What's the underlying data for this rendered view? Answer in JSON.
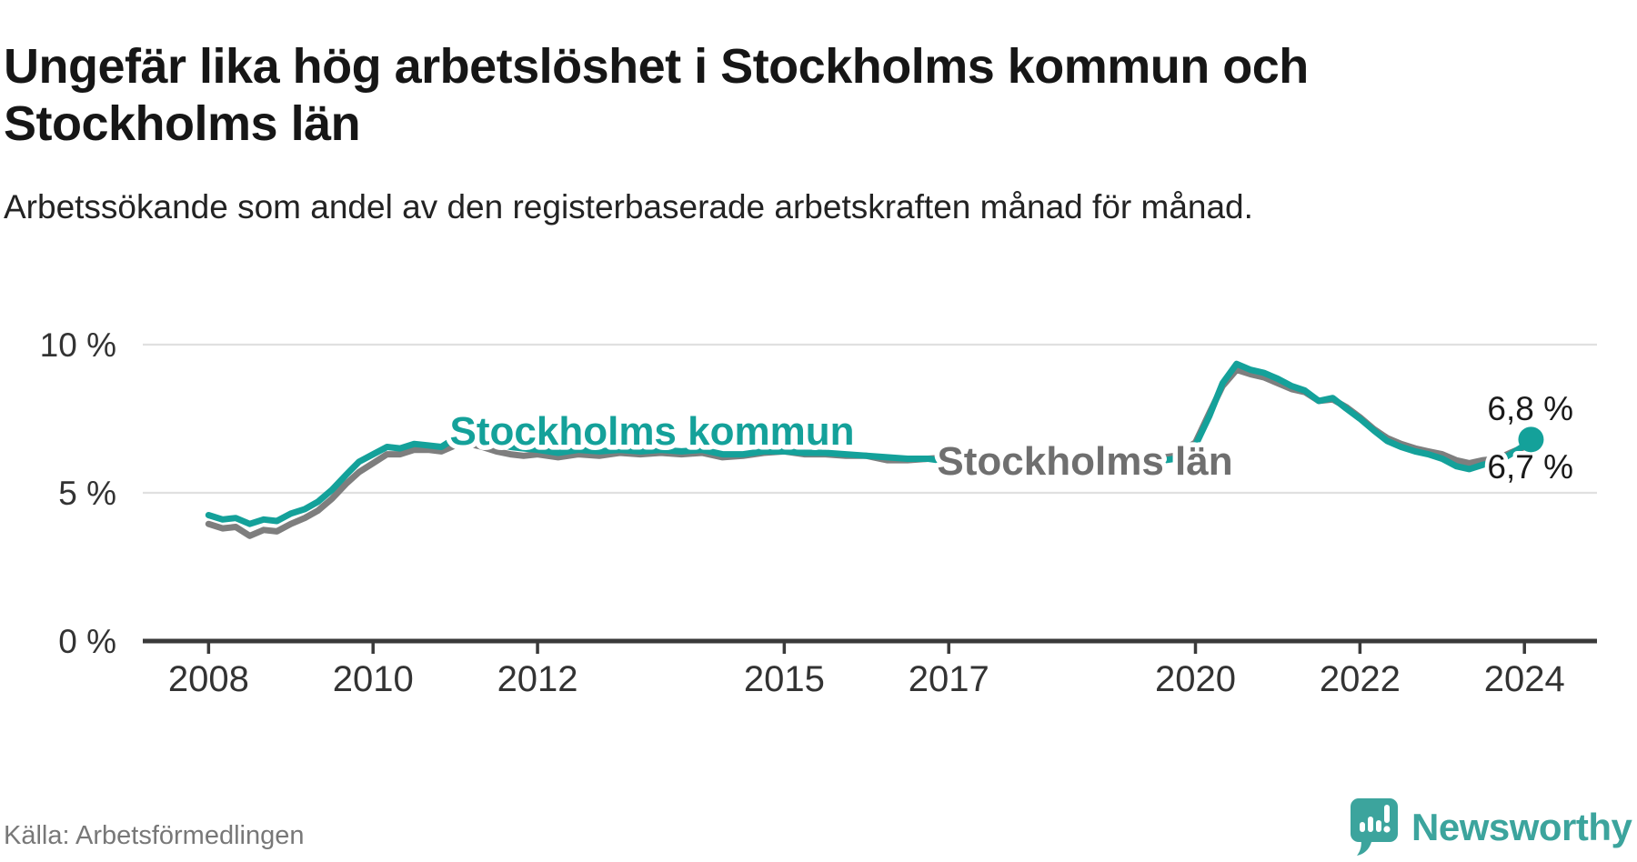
{
  "header": {
    "title": "Ungefär lika hög arbetslöshet i Stockholms kommun och Stockholms län",
    "subtitle": "Arbetssökande som andel av den registerbaserade arbetskraften månad för månad."
  },
  "footer": {
    "source": "Källa: Arbetsförmedlingen",
    "brand": "Newsworthy"
  },
  "colors": {
    "kommun_teal": "#14a19a",
    "lan_gray": "#7e7e7e",
    "kommun_label": "#14a19a",
    "lan_label": "#6f6f6f",
    "axis_text": "#333333",
    "gridline": "#e0e0e0",
    "axis_line": "#3a3a3a",
    "logo_teal": "#3ca49d"
  },
  "chart_data": {
    "type": "line",
    "title": "Ungefär lika hög arbetslöshet i Stockholms kommun och Stockholms län",
    "xlabel": "",
    "ylabel": "Arbetssökande som andel av den registerbaserade arbetskraften",
    "ylim": [
      0,
      10.8
    ],
    "x_range": [
      2008.0,
      2024.1
    ],
    "grid": "horizontal",
    "legend_position": "inline-labels",
    "x_ticks": [
      2008,
      2010,
      2012,
      2015,
      2017,
      2020,
      2022,
      2024
    ],
    "y_ticks": [
      {
        "value": 0,
        "label": "0 %"
      },
      {
        "value": 5,
        "label": "5 %"
      },
      {
        "value": 10,
        "label": "10 %"
      }
    ],
    "series": [
      {
        "name": "Stockholms kommun",
        "color": "#14a19a",
        "end_label": "6,8 %",
        "end_value": 6.8,
        "end_dot": true,
        "points": [
          [
            2008.0,
            4.25
          ],
          [
            2008.17,
            4.1
          ],
          [
            2008.33,
            4.15
          ],
          [
            2008.5,
            3.95
          ],
          [
            2008.67,
            4.1
          ],
          [
            2008.83,
            4.05
          ],
          [
            2009.0,
            4.3
          ],
          [
            2009.17,
            4.45
          ],
          [
            2009.33,
            4.7
          ],
          [
            2009.5,
            5.1
          ],
          [
            2009.67,
            5.6
          ],
          [
            2009.83,
            6.05
          ],
          [
            2010.0,
            6.3
          ],
          [
            2010.17,
            6.55
          ],
          [
            2010.33,
            6.5
          ],
          [
            2010.5,
            6.65
          ],
          [
            2010.67,
            6.6
          ],
          [
            2010.83,
            6.55
          ],
          [
            2011.0,
            6.85
          ],
          [
            2011.17,
            7.0
          ],
          [
            2011.33,
            6.9
          ],
          [
            2011.5,
            6.65
          ],
          [
            2011.67,
            6.55
          ],
          [
            2011.83,
            6.5
          ],
          [
            2012.0,
            6.45
          ],
          [
            2012.25,
            6.35
          ],
          [
            2012.5,
            6.45
          ],
          [
            2012.75,
            6.4
          ],
          [
            2013.0,
            6.45
          ],
          [
            2013.25,
            6.4
          ],
          [
            2013.5,
            6.45
          ],
          [
            2013.75,
            6.4
          ],
          [
            2014.0,
            6.45
          ],
          [
            2014.25,
            6.3
          ],
          [
            2014.5,
            6.3
          ],
          [
            2014.75,
            6.4
          ],
          [
            2015.0,
            6.4
          ],
          [
            2015.25,
            6.35
          ],
          [
            2015.5,
            6.35
          ],
          [
            2015.75,
            6.3
          ],
          [
            2016.0,
            6.25
          ],
          [
            2016.25,
            6.2
          ],
          [
            2016.5,
            6.15
          ],
          [
            2016.75,
            6.15
          ],
          [
            2017.0,
            6.05
          ],
          [
            2017.25,
            6.0
          ],
          [
            2017.5,
            5.95
          ],
          [
            2017.75,
            5.9
          ],
          [
            2018.0,
            5.9
          ],
          [
            2018.25,
            5.85
          ],
          [
            2018.5,
            5.85
          ],
          [
            2018.75,
            5.9
          ],
          [
            2019.0,
            5.95
          ],
          [
            2019.25,
            6.0
          ],
          [
            2019.5,
            6.05
          ],
          [
            2019.75,
            6.15
          ],
          [
            2020.0,
            6.6
          ],
          [
            2020.17,
            7.6
          ],
          [
            2020.33,
            8.7
          ],
          [
            2020.5,
            9.35
          ],
          [
            2020.67,
            9.15
          ],
          [
            2020.83,
            9.05
          ],
          [
            2021.0,
            8.85
          ],
          [
            2021.17,
            8.6
          ],
          [
            2021.33,
            8.45
          ],
          [
            2021.5,
            8.1
          ],
          [
            2021.67,
            8.2
          ],
          [
            2021.83,
            7.85
          ],
          [
            2022.0,
            7.5
          ],
          [
            2022.17,
            7.1
          ],
          [
            2022.33,
            6.75
          ],
          [
            2022.5,
            6.55
          ],
          [
            2022.67,
            6.4
          ],
          [
            2022.83,
            6.3
          ],
          [
            2023.0,
            6.15
          ],
          [
            2023.17,
            5.9
          ],
          [
            2023.33,
            5.8
          ],
          [
            2023.5,
            5.95
          ],
          [
            2023.67,
            6.05
          ],
          [
            2023.83,
            6.3
          ],
          [
            2024.0,
            6.6
          ],
          [
            2024.08,
            6.8
          ]
        ]
      },
      {
        "name": "Stockholms län",
        "color": "#7e7e7e",
        "end_label": "6,7 %",
        "end_value": 6.7,
        "end_dot": false,
        "points": [
          [
            2008.0,
            3.95
          ],
          [
            2008.17,
            3.8
          ],
          [
            2008.33,
            3.85
          ],
          [
            2008.5,
            3.55
          ],
          [
            2008.67,
            3.75
          ],
          [
            2008.83,
            3.7
          ],
          [
            2009.0,
            3.95
          ],
          [
            2009.17,
            4.15
          ],
          [
            2009.33,
            4.4
          ],
          [
            2009.5,
            4.8
          ],
          [
            2009.67,
            5.3
          ],
          [
            2009.83,
            5.7
          ],
          [
            2010.0,
            6.0
          ],
          [
            2010.17,
            6.3
          ],
          [
            2010.33,
            6.3
          ],
          [
            2010.5,
            6.45
          ],
          [
            2010.67,
            6.45
          ],
          [
            2010.83,
            6.4
          ],
          [
            2011.0,
            6.6
          ],
          [
            2011.17,
            6.65
          ],
          [
            2011.33,
            6.55
          ],
          [
            2011.5,
            6.4
          ],
          [
            2011.67,
            6.3
          ],
          [
            2011.83,
            6.25
          ],
          [
            2012.0,
            6.3
          ],
          [
            2012.25,
            6.2
          ],
          [
            2012.5,
            6.3
          ],
          [
            2012.75,
            6.25
          ],
          [
            2013.0,
            6.35
          ],
          [
            2013.25,
            6.3
          ],
          [
            2013.5,
            6.35
          ],
          [
            2013.75,
            6.3
          ],
          [
            2014.0,
            6.35
          ],
          [
            2014.25,
            6.2
          ],
          [
            2014.5,
            6.25
          ],
          [
            2014.75,
            6.35
          ],
          [
            2015.0,
            6.4
          ],
          [
            2015.25,
            6.3
          ],
          [
            2015.5,
            6.3
          ],
          [
            2015.75,
            6.25
          ],
          [
            2016.0,
            6.25
          ],
          [
            2016.25,
            6.1
          ],
          [
            2016.5,
            6.1
          ],
          [
            2016.75,
            6.15
          ],
          [
            2017.0,
            6.2
          ],
          [
            2017.25,
            6.15
          ],
          [
            2017.5,
            6.1
          ],
          [
            2017.75,
            6.05
          ],
          [
            2018.0,
            6.05
          ],
          [
            2018.25,
            6.0
          ],
          [
            2018.5,
            6.0
          ],
          [
            2018.75,
            6.05
          ],
          [
            2019.0,
            6.1
          ],
          [
            2019.25,
            6.1
          ],
          [
            2019.5,
            6.15
          ],
          [
            2019.75,
            6.25
          ],
          [
            2020.0,
            6.7
          ],
          [
            2020.17,
            7.7
          ],
          [
            2020.33,
            8.6
          ],
          [
            2020.5,
            9.15
          ],
          [
            2020.67,
            9.0
          ],
          [
            2020.83,
            8.9
          ],
          [
            2021.0,
            8.7
          ],
          [
            2021.17,
            8.5
          ],
          [
            2021.33,
            8.4
          ],
          [
            2021.5,
            8.1
          ],
          [
            2021.67,
            8.15
          ],
          [
            2021.83,
            7.9
          ],
          [
            2022.0,
            7.55
          ],
          [
            2022.17,
            7.15
          ],
          [
            2022.33,
            6.85
          ],
          [
            2022.5,
            6.65
          ],
          [
            2022.67,
            6.5
          ],
          [
            2022.83,
            6.4
          ],
          [
            2023.0,
            6.3
          ],
          [
            2023.17,
            6.1
          ],
          [
            2023.33,
            6.0
          ],
          [
            2023.5,
            6.1
          ],
          [
            2023.67,
            6.15
          ],
          [
            2023.83,
            6.35
          ],
          [
            2024.0,
            6.55
          ],
          [
            2024.08,
            6.7
          ]
        ]
      }
    ]
  }
}
